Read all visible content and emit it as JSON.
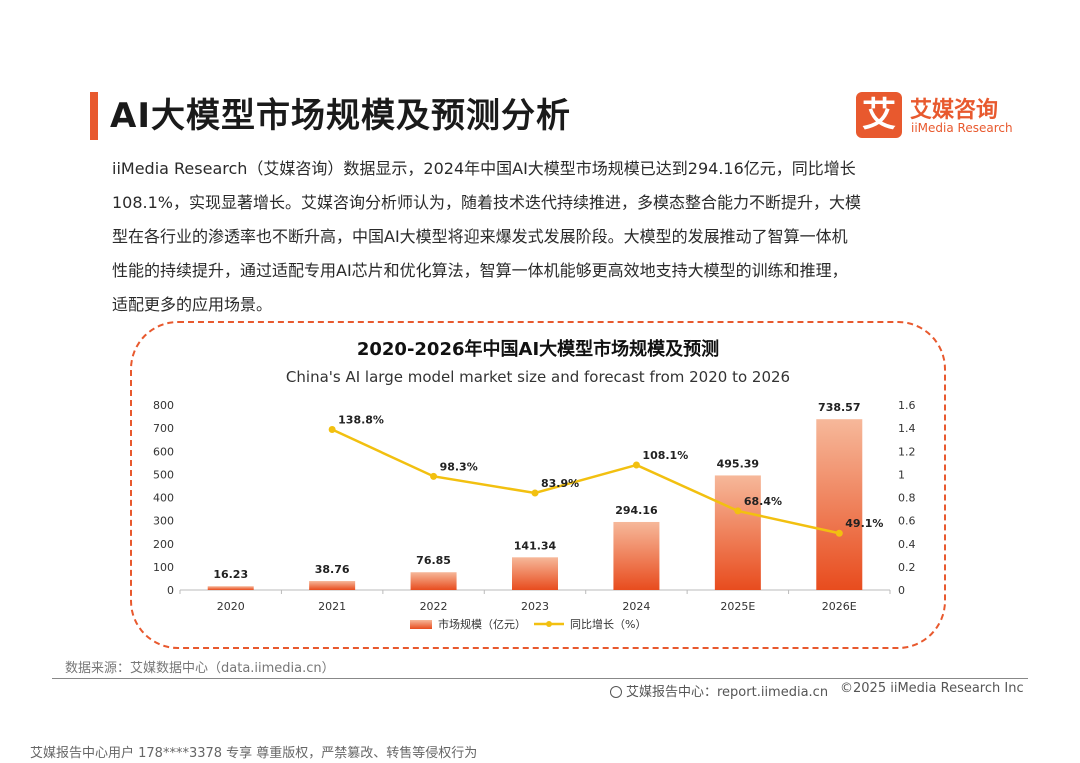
{
  "header": {
    "title": "AI大模型市场规模及预测分析",
    "logo": {
      "mark": "艾",
      "cn": "艾媒咨询",
      "en": "iiMedia Research"
    }
  },
  "intro": {
    "lines": [
      "iiMedia Research（艾媒咨询）数据显示，2024年中国AI大模型市场规模已达到294.16亿元，同比增长",
      "108.1%，实现显著增长。艾媒咨询分析师认为，随着技术迭代持续推进，多模态整合能力不断提升，大模",
      "型在各行业的渗透率也不断升高，中国AI大模型将迎来爆发式发展阶段。大模型的发展推动了智算一体机",
      "性能的持续提升，通过适配专用AI芯片和优化算法，智算一体机能够更高效地支持大模型的训练和推理，",
      "适配更多的应用场景。"
    ]
  },
  "chart_data": {
    "type": "bar",
    "title": "2020-2026年中国AI大模型市场规模及预测",
    "subtitle": "China's AI large model market size and forecast from 2020 to 2026",
    "categories": [
      "2020",
      "2021",
      "2022",
      "2023",
      "2024",
      "2025E",
      "2026E"
    ],
    "series": [
      {
        "name": "市场规模（亿元）",
        "type": "bar",
        "axis": "left",
        "values": [
          16.23,
          38.76,
          76.85,
          141.34,
          294.16,
          495.39,
          738.57
        ],
        "labels": [
          "16.23",
          "38.76",
          "76.85",
          "141.34",
          "294.16",
          "495.39",
          "738.57"
        ]
      },
      {
        "name": "同比增长（%）",
        "type": "line",
        "axis": "right",
        "values": [
          null,
          1.388,
          0.983,
          0.839,
          1.081,
          0.684,
          0.491
        ],
        "labels": [
          "",
          "138.8%",
          "98.3%",
          "83.9%",
          "108.1%",
          "68.4%",
          "49.1%"
        ]
      }
    ],
    "y_left": {
      "min": 0,
      "max": 800,
      "ticks": [
        "0",
        "100",
        "200",
        "300",
        "400",
        "500",
        "600",
        "700",
        "800"
      ]
    },
    "y_right": {
      "min": 0,
      "max": 1.6,
      "ticks": [
        "0",
        "0.2",
        "0.4",
        "0.6",
        "0.8",
        "1",
        "1.2",
        "1.4",
        "1.6"
      ]
    },
    "colors": {
      "bar_top": "#f6b89a",
      "bar_bottom": "#e84c1e",
      "line": "#f2c010"
    },
    "legend_position": "bottom-center"
  },
  "footer": {
    "source": "数据来源：艾媒数据中心（data.iimedia.cn）",
    "report_center": "艾媒报告中心：report.iimedia.cn",
    "copyright": "©2025  iiMedia Research  Inc",
    "notice": "艾媒报告中心用户 178****3378 专享 尊重版权，严禁篡改、转售等侵权行为"
  }
}
